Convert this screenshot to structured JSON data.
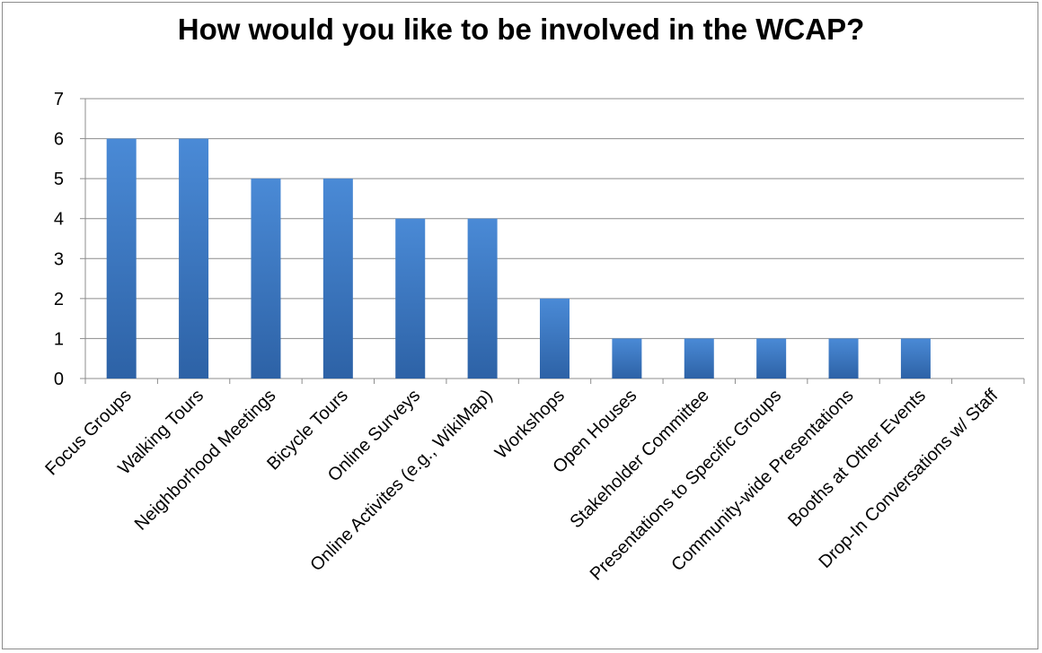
{
  "chart_data": {
    "type": "bar",
    "title": "How would you like to be involved in the WCAP?",
    "categories": [
      "Focus Groups",
      "Walking Tours",
      "Neighborhood Meetings",
      "Bicycle Tours",
      "Online Surveys",
      "Online Activites (e.g., WikiMap)",
      "Workshops",
      "Open Houses",
      "Stakeholder Committee",
      "Presentations to Specific Groups",
      "Community-wide Presentations",
      "Booths at Other Events",
      "Drop-In Conversations w/ Staff"
    ],
    "values": [
      6,
      6,
      5,
      5,
      4,
      4,
      2,
      1,
      1,
      1,
      1,
      1,
      0
    ],
    "ylim": [
      0,
      7
    ],
    "yticks": [
      0,
      1,
      2,
      3,
      4,
      5,
      6,
      7
    ],
    "grid": true,
    "legend": "none",
    "colors": {
      "bar_light": "#4a8ad6",
      "bar_dark": "#2d62a6",
      "grid": "#8c8c8c"
    }
  }
}
